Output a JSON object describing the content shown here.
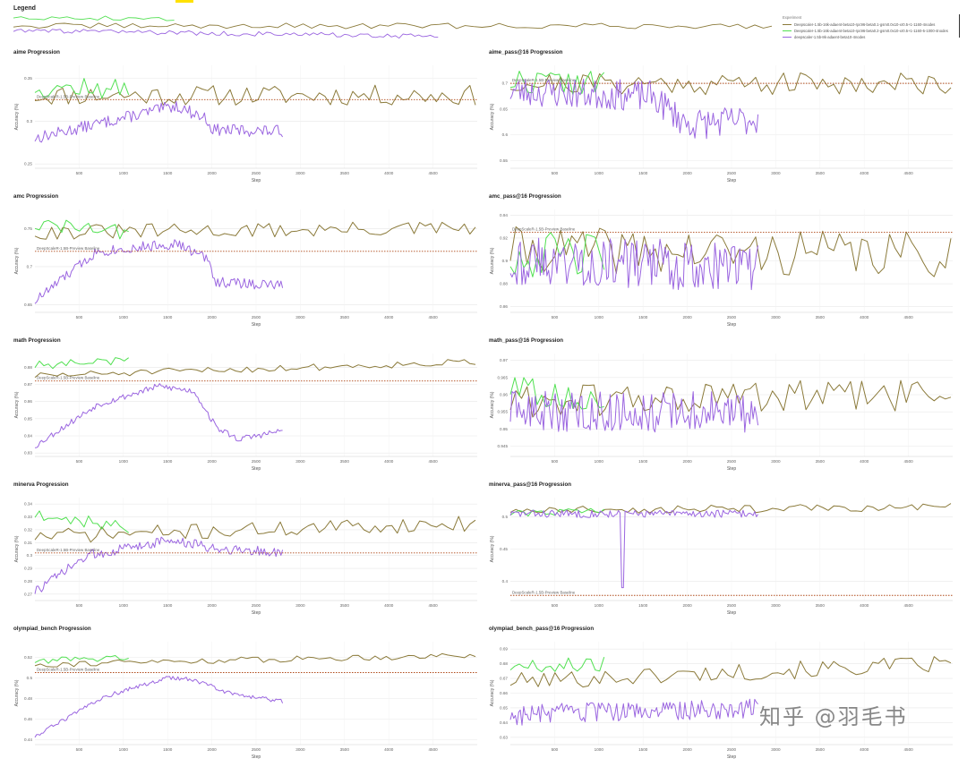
{
  "legend": {
    "title": "Legend",
    "header": "Experiment",
    "entries": [
      {
        "name": "Deepscaler-1.5b-16k-adaent-beta10-rpc96-beta0.1-gsm0.0x10-xr0.5+1-1160-4nodes",
        "color": "#8b7a3a"
      },
      {
        "name": "Deepscaler-1.5b-16k-adaent-beta10-rpc96-beta0.2-gsm0.0x10-xr0.5+1-1160-5-1000-4nodes",
        "color": "#52e052"
      },
      {
        "name": "deepscaler-1.5b-8k-adaent-beta10-4nodes",
        "color": "#9b66e0"
      }
    ]
  },
  "colors": {
    "olive": "#8b7a3a",
    "green": "#52e052",
    "purple": "#9b66e0",
    "baseline": "#b04a1a",
    "grid": "#e8e8e8"
  },
  "watermark": "知乎 @羽毛书",
  "chart_data": [
    {
      "type": "line",
      "title": "aime Progression",
      "xlabel": "Step",
      "ylabel": "Accuracy (%)",
      "ylim": [
        0.245,
        0.365
      ],
      "yticks": [
        0.25,
        0.3,
        0.35
      ],
      "ytick_labels": [
        "0.25",
        "0.3",
        "0.35"
      ],
      "xlim": [
        0,
        5000
      ],
      "xticks": [
        500,
        1000,
        1500,
        2000,
        2500,
        3000,
        3500,
        4000,
        4500
      ],
      "baseline": {
        "value": 0.325,
        "label": "DeepScaleR-1.5B-Preview Baseline"
      },
      "grid": true,
      "series": [
        {
          "color": "olive",
          "x_start": 0,
          "x_end": 4980,
          "n": 80,
          "start": 0.33,
          "end": 0.33,
          "amp": 0.012,
          "seed": 11
        },
        {
          "color": "green",
          "x_start": 0,
          "x_end": 1060,
          "n": 22,
          "start": 0.34,
          "end": 0.336,
          "amp": 0.013,
          "seed": 12
        },
        {
          "color": "purple",
          "x_start": 0,
          "x_end": 2800,
          "n": 150,
          "amp": 0.007,
          "seed": 13,
          "shape": [
            [
              0,
              0.28
            ],
            [
              1600,
              0.318
            ],
            [
              1950,
              0.302
            ],
            [
              2000,
              0.29
            ],
            [
              2800,
              0.288
            ]
          ]
        }
      ]
    },
    {
      "type": "line",
      "title": "aime_pass@16 Progression",
      "xlabel": "Step",
      "ylabel": "Accuracy (%)",
      "ylim": [
        0.535,
        0.735
      ],
      "yticks": [
        0.55,
        0.6,
        0.65,
        0.7
      ],
      "ytick_labels": [
        "0.55",
        "0.6",
        "0.65",
        "0.7"
      ],
      "xlim": [
        0,
        5000
      ],
      "xticks": [
        500,
        1000,
        1500,
        2000,
        2500,
        3000,
        3500,
        4000,
        4500
      ],
      "baseline": {
        "value": 0.7,
        "label": "DeepScaleR-1.5B-Preview Baseline"
      },
      "grid": true,
      "series": [
        {
          "color": "olive",
          "x_start": 0,
          "x_end": 4980,
          "n": 80,
          "start": 0.7,
          "end": 0.7,
          "amp": 0.022,
          "seed": 21
        },
        {
          "color": "green",
          "x_start": 0,
          "x_end": 1060,
          "n": 22,
          "start": 0.705,
          "end": 0.7,
          "amp": 0.025,
          "seed": 22
        },
        {
          "color": "purple",
          "x_start": 0,
          "x_end": 2800,
          "n": 150,
          "amp": 0.03,
          "seed": 23,
          "shape": [
            [
              0,
              0.685
            ],
            [
              1600,
              0.675
            ],
            [
              2000,
              0.62
            ],
            [
              2800,
              0.63
            ]
          ]
        }
      ]
    },
    {
      "type": "line",
      "title": "amc Progression",
      "xlabel": "Step",
      "ylabel": "Accuracy (%)",
      "ylim": [
        0.64,
        0.775
      ],
      "yticks": [
        0.65,
        0.7,
        0.75
      ],
      "ytick_labels": [
        "0.65",
        "0.7",
        "0.75"
      ],
      "xlim": [
        0,
        5000
      ],
      "xticks": [
        500,
        1000,
        1500,
        2000,
        2500,
        3000,
        3500,
        4000,
        4500
      ],
      "baseline": {
        "value": 0.72,
        "label": "DeepScaleR-1.5B-Preview Baseline"
      },
      "grid": true,
      "series": [
        {
          "color": "olive",
          "x_start": 0,
          "x_end": 4980,
          "n": 80,
          "start": 0.745,
          "end": 0.75,
          "amp": 0.01,
          "seed": 31
        },
        {
          "color": "green",
          "x_start": 0,
          "x_end": 1060,
          "n": 22,
          "start": 0.755,
          "end": 0.745,
          "amp": 0.01,
          "seed": 32
        },
        {
          "color": "purple",
          "x_start": 0,
          "x_end": 2800,
          "n": 150,
          "amp": 0.007,
          "seed": 33,
          "shape": [
            [
              0,
              0.655
            ],
            [
              700,
              0.72
            ],
            [
              1600,
              0.73
            ],
            [
              1950,
              0.71
            ],
            [
              2050,
              0.68
            ],
            [
              2800,
              0.675
            ]
          ]
        }
      ]
    },
    {
      "type": "line",
      "title": "amc_pass@16 Progression",
      "xlabel": "Step",
      "ylabel": "Accuracy (%)",
      "ylim": [
        0.855,
        0.945
      ],
      "yticks": [
        0.86,
        0.88,
        0.9,
        0.92,
        0.94
      ],
      "ytick_labels": [
        "0.86",
        "0.88",
        "0.9",
        "0.92",
        "0.94"
      ],
      "xlim": [
        0,
        5000
      ],
      "xticks": [
        500,
        1000,
        1500,
        2000,
        2500,
        3000,
        3500,
        4000,
        4500
      ],
      "baseline": {
        "value": 0.925,
        "label": "DeepScaleR-1.5B-Preview Baseline"
      },
      "grid": true,
      "series": [
        {
          "color": "olive",
          "x_start": 0,
          "x_end": 4980,
          "n": 80,
          "start": 0.91,
          "end": 0.905,
          "amp": 0.02,
          "seed": 41
        },
        {
          "color": "green",
          "x_start": 0,
          "x_end": 1060,
          "n": 22,
          "start": 0.905,
          "end": 0.905,
          "amp": 0.02,
          "seed": 42
        },
        {
          "color": "purple",
          "x_start": 0,
          "x_end": 2800,
          "n": 150,
          "amp": 0.022,
          "seed": 43,
          "shape": [
            [
              0,
              0.9
            ],
            [
              2800,
              0.895
            ]
          ]
        }
      ]
    },
    {
      "type": "line",
      "title": "math Progression",
      "xlabel": "Step",
      "ylabel": "Accuracy (%)",
      "ylim": [
        0.828,
        0.888
      ],
      "yticks": [
        0.83,
        0.84,
        0.85,
        0.86,
        0.87,
        0.88
      ],
      "ytick_labels": [
        "0.83",
        "0.84",
        "0.85",
        "0.86",
        "0.87",
        "0.88"
      ],
      "xlim": [
        0,
        5000
      ],
      "xticks": [
        500,
        1000,
        1500,
        2000,
        2500,
        3000,
        3500,
        4000,
        4500
      ],
      "baseline": {
        "value": 0.872,
        "label": "DeepScaleR-1.5B-Preview Baseline"
      },
      "grid": true,
      "series": [
        {
          "color": "olive",
          "x_start": 0,
          "x_end": 4980,
          "n": 80,
          "start": 0.875,
          "end": 0.883,
          "amp": 0.002,
          "seed": 51
        },
        {
          "color": "green",
          "x_start": 0,
          "x_end": 1060,
          "n": 22,
          "start": 0.881,
          "end": 0.884,
          "amp": 0.0025,
          "seed": 52
        },
        {
          "color": "purple",
          "x_start": 0,
          "x_end": 2800,
          "n": 150,
          "amp": 0.0018,
          "seed": 53,
          "shape": [
            [
              0,
              0.834
            ],
            [
              700,
              0.858
            ],
            [
              1400,
              0.869
            ],
            [
              1800,
              0.866
            ],
            [
              2050,
              0.845
            ],
            [
              2300,
              0.838
            ],
            [
              2800,
              0.843
            ]
          ]
        }
      ]
    },
    {
      "type": "line",
      "title": "math_pass@16 Progression",
      "xlabel": "Step",
      "ylabel": "Accuracy (%)",
      "ylim": [
        0.942,
        0.972
      ],
      "yticks": [
        0.945,
        0.95,
        0.955,
        0.96,
        0.965,
        0.97
      ],
      "ytick_labels": [
        "0.945",
        "0.95",
        "0.955",
        "0.96",
        "0.965",
        "0.97"
      ],
      "xlim": [
        0,
        5000
      ],
      "xticks": [
        500,
        1000,
        1500,
        2000,
        2500,
        3000,
        3500,
        4000,
        4500
      ],
      "grid": true,
      "series": [
        {
          "color": "olive",
          "x_start": 0,
          "x_end": 4980,
          "n": 80,
          "start": 0.958,
          "end": 0.96,
          "amp": 0.005,
          "seed": 61
        },
        {
          "color": "green",
          "x_start": 0,
          "x_end": 1060,
          "n": 22,
          "start": 0.962,
          "end": 0.957,
          "amp": 0.004,
          "seed": 62
        },
        {
          "color": "purple",
          "x_start": 0,
          "x_end": 2800,
          "n": 150,
          "amp": 0.006,
          "seed": 63,
          "shape": [
            [
              0,
              0.955
            ],
            [
              2800,
              0.955
            ]
          ]
        }
      ]
    },
    {
      "type": "line",
      "title": "minerva Progression",
      "xlabel": "Step",
      "ylabel": "Accuracy (%)",
      "ylim": [
        0.265,
        0.345
      ],
      "yticks": [
        0.27,
        0.28,
        0.29,
        0.3,
        0.31,
        0.32,
        0.33,
        0.34
      ],
      "ytick_labels": [
        "0.27",
        "0.28",
        "0.29",
        "0.3",
        "0.31",
        "0.32",
        "0.33",
        "0.34"
      ],
      "xlim": [
        0,
        5000
      ],
      "xticks": [
        500,
        1000,
        1500,
        2000,
        2500,
        3000,
        3500,
        4000,
        4500
      ],
      "baseline": {
        "value": 0.302,
        "label": "DeepScaleR-1.5B-Preview Baseline"
      },
      "grid": true,
      "series": [
        {
          "color": "olive",
          "x_start": 0,
          "x_end": 4980,
          "n": 80,
          "start": 0.315,
          "end": 0.325,
          "amp": 0.006,
          "seed": 71
        },
        {
          "color": "green",
          "x_start": 0,
          "x_end": 1060,
          "n": 22,
          "start": 0.332,
          "end": 0.322,
          "amp": 0.005,
          "seed": 72
        },
        {
          "color": "purple",
          "x_start": 0,
          "x_end": 2800,
          "n": 150,
          "amp": 0.004,
          "seed": 73,
          "shape": [
            [
              0,
              0.272
            ],
            [
              600,
              0.3
            ],
            [
              1500,
              0.312
            ],
            [
              2000,
              0.306
            ],
            [
              2800,
              0.302
            ]
          ]
        }
      ]
    },
    {
      "type": "line",
      "title": "minerva_pass@16 Progression",
      "xlabel": "Step",
      "ylabel": "Accuracy (%)",
      "ylim": [
        0.37,
        0.53
      ],
      "yticks": [
        0.4,
        0.45,
        0.5
      ],
      "ytick_labels": [
        "0.4",
        "0.45",
        "0.5"
      ],
      "xlim": [
        0,
        5000
      ],
      "xticks": [
        500,
        1000,
        1500,
        2000,
        2500,
        3000,
        3500,
        4000,
        4500
      ],
      "baseline": {
        "value": 0.378,
        "label": "DeepScaleR-1.5B-Preview Baseline"
      },
      "grid": true,
      "series": [
        {
          "color": "olive",
          "x_start": 0,
          "x_end": 4980,
          "n": 80,
          "start": 0.51,
          "end": 0.515,
          "amp": 0.006,
          "seed": 81
        },
        {
          "color": "green",
          "x_start": 0,
          "x_end": 1060,
          "n": 22,
          "start": 0.505,
          "end": 0.51,
          "amp": 0.005,
          "seed": 82
        },
        {
          "color": "purple",
          "x_start": 0,
          "x_end": 2800,
          "n": 150,
          "amp": 0.006,
          "seed": 83,
          "shape": [
            [
              0,
              0.505
            ],
            [
              2800,
              0.505
            ]
          ],
          "dip": {
            "x": 1260,
            "value": 0.39
          }
        }
      ]
    },
    {
      "type": "line",
      "title": "olympiad_bench Progression",
      "xlabel": "Step",
      "ylabel": "Accuracy (%)",
      "ylim": [
        0.435,
        0.535
      ],
      "yticks": [
        0.44,
        0.46,
        0.48,
        0.5,
        0.52
      ],
      "ytick_labels": [
        "0.44",
        "0.46",
        "0.48",
        "0.5",
        "0.52"
      ],
      "xlim": [
        0,
        5000
      ],
      "xticks": [
        500,
        1000,
        1500,
        2000,
        2500,
        3000,
        3500,
        4000,
        4500
      ],
      "baseline": {
        "value": 0.505,
        "label": "DeepScaleR-1.5B-Preview Baseline"
      },
      "grid": true,
      "series": [
        {
          "color": "olive",
          "x_start": 0,
          "x_end": 4980,
          "n": 80,
          "start": 0.513,
          "end": 0.522,
          "amp": 0.003,
          "seed": 91
        },
        {
          "color": "green",
          "x_start": 0,
          "x_end": 1060,
          "n": 22,
          "start": 0.516,
          "end": 0.52,
          "amp": 0.003,
          "seed": 92
        },
        {
          "color": "purple",
          "x_start": 0,
          "x_end": 2800,
          "n": 150,
          "amp": 0.002,
          "seed": 93,
          "shape": [
            [
              0,
              0.443
            ],
            [
              800,
              0.482
            ],
            [
              1500,
              0.5
            ],
            [
              1800,
              0.498
            ],
            [
              2200,
              0.485
            ],
            [
              2800,
              0.477
            ]
          ]
        }
      ]
    },
    {
      "type": "line",
      "title": "olympiad_bench_pass@16 Progression",
      "xlabel": "Step",
      "ylabel": "Accuracy (%)",
      "ylim": [
        0.625,
        0.695
      ],
      "yticks": [
        0.63,
        0.64,
        0.65,
        0.66,
        0.67,
        0.68,
        0.69
      ],
      "ytick_labels": [
        "0.63",
        "0.64",
        "0.65",
        "0.66",
        "0.67",
        "0.68",
        "0.69"
      ],
      "xlim": [
        0,
        5000
      ],
      "xticks": [
        500,
        1000,
        1500,
        2000,
        2500,
        3000,
        3500,
        4000,
        4500
      ],
      "grid": true,
      "series": [
        {
          "color": "olive",
          "x_start": 0,
          "x_end": 4980,
          "n": 80,
          "start": 0.668,
          "end": 0.68,
          "amp": 0.006,
          "seed": 101
        },
        {
          "color": "green",
          "x_start": 0,
          "x_end": 1060,
          "n": 22,
          "start": 0.678,
          "end": 0.68,
          "amp": 0.005,
          "seed": 102
        },
        {
          "color": "purple",
          "x_start": 0,
          "x_end": 2800,
          "n": 150,
          "amp": 0.007,
          "seed": 103,
          "shape": [
            [
              0,
              0.645
            ],
            [
              2800,
              0.65
            ]
          ]
        }
      ]
    }
  ]
}
